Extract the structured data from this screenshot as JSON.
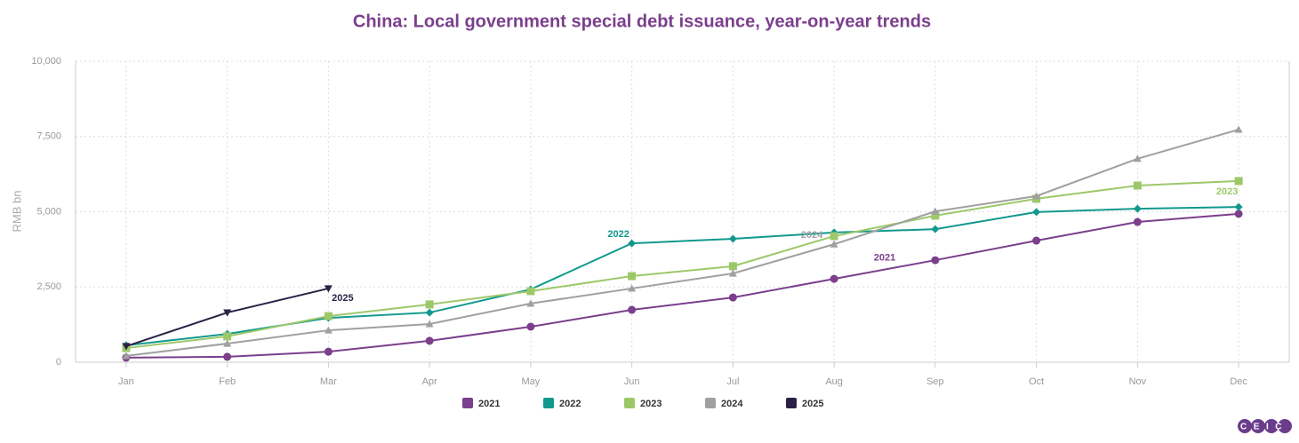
{
  "chart_data": {
    "type": "line",
    "title": "China: Local government special debt issuance, year-on-year trends",
    "y_label": "RMB bn",
    "logo": "CEIC",
    "categories": [
      "Jan",
      "Feb",
      "Mar",
      "Apr",
      "May",
      "Jun",
      "Jul",
      "Aug",
      "Sep",
      "Oct",
      "Nov",
      "Dec"
    ],
    "ylim": [
      0,
      10000
    ],
    "yticks": [
      0,
      {
        "value": 2500,
        "label": "2,500"
      },
      {
        "value": 5000,
        "label": "5,000"
      },
      {
        "value": 7500,
        "label": "7,500"
      },
      {
        "value": 10000,
        "label": "10,000"
      }
    ],
    "grid": true,
    "legend": "bottom",
    "series": [
      {
        "name": "2021",
        "color": "#7b3f8c",
        "marker": "circle",
        "values": [
          150,
          180,
          350,
          710,
          1180,
          1740,
          2150,
          2770,
          3390,
          4040,
          4660,
          4930
        ]
      },
      {
        "name": "2022",
        "color": "#11998e",
        "marker": "diamond",
        "values": [
          560,
          940,
          1470,
          1650,
          2420,
          3950,
          4100,
          4310,
          4420,
          4990,
          5100,
          5160
        ]
      },
      {
        "name": "2023",
        "color": "#9dc86a",
        "marker": "square",
        "values": [
          470,
          860,
          1530,
          1920,
          2360,
          2860,
          3190,
          4190,
          4870,
          5430,
          5870,
          6020
        ]
      },
      {
        "name": "2024",
        "color": "#a0a0a0",
        "marker": "triangle",
        "values": [
          210,
          620,
          1060,
          1270,
          1950,
          2450,
          2950,
          3920,
          5010,
          5520,
          6760,
          7730
        ]
      },
      {
        "name": "2025",
        "color": "#2b2145",
        "marker": "triangle-down",
        "values": [
          530,
          1650,
          2450,
          null,
          null,
          null,
          null,
          null,
          null,
          null,
          null,
          null
        ]
      }
    ]
  }
}
